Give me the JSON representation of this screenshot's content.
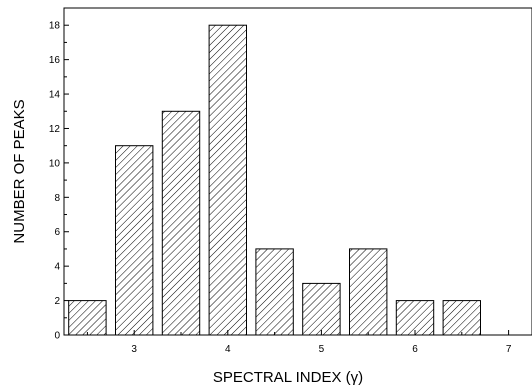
{
  "chart_data": {
    "type": "bar",
    "title": "",
    "xlabel": "SPECTRAL INDEX (γ)",
    "ylabel": "NUMBER OF PEAKS",
    "x": [
      2.5,
      3.0,
      3.5,
      4.0,
      4.5,
      5.0,
      5.5,
      6.0,
      6.5
    ],
    "values": [
      2,
      11,
      13,
      18,
      5,
      3,
      5,
      2,
      2
    ],
    "bar_width": 0.4,
    "xlim": [
      2.25,
      7.25
    ],
    "ylim": [
      0,
      19
    ],
    "xticks": [
      3,
      4,
      5,
      6,
      7
    ],
    "xticks_minor": [
      2.5,
      3.5,
      4.5,
      5.5,
      6.5
    ],
    "yticks": [
      0,
      2,
      4,
      6,
      8,
      10,
      12,
      14,
      16,
      18
    ],
    "yticks_minor": [
      1,
      3,
      5,
      7,
      9,
      11,
      13,
      15,
      17
    ],
    "bar_fill": "hatched",
    "colors": {
      "bar_edge": "#000000",
      "hatch": "#000000",
      "axis": "#000000",
      "background": "#ffffff"
    },
    "grid": false,
    "legend": "none"
  }
}
